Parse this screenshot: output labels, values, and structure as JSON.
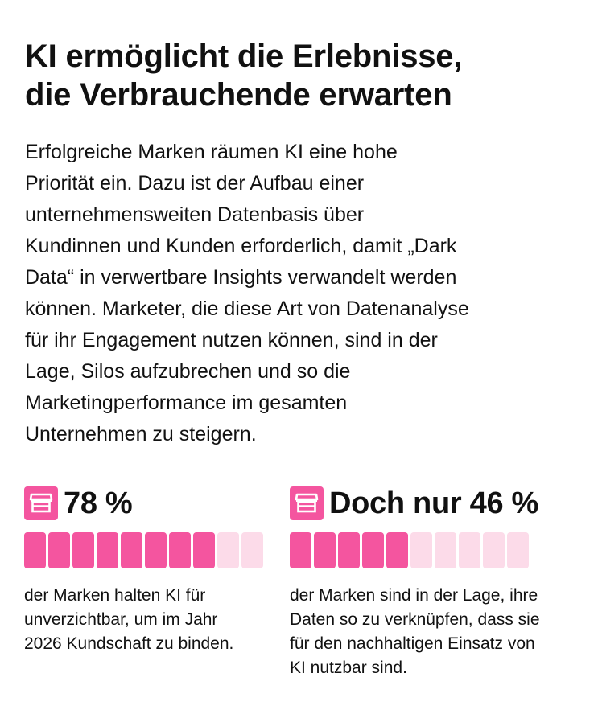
{
  "headline": {
    "lines": [
      "KI ermöglicht die Erlebnisse,",
      "die Verbrauchende erwarten"
    ]
  },
  "body": {
    "lines": [
      "Erfolgreiche Marken räumen KI eine hohe",
      "Priorität ein. Dazu ist der Aufbau einer",
      "unternehmensweiten Datenbasis über",
      "Kundinnen und Kunden erforderlich, damit „Dark",
      "Data“ in verwertbare Insights verwandelt werden",
      "können. Marketer, die diese Art von Datenanalyse",
      "für ihr Engagement nutzen können, sind in der",
      "Lage, Silos aufzubrechen und so die",
      "Marketingperformance im gesamten",
      "Unternehmen zu steigern."
    ]
  },
  "stats": [
    {
      "icon": "storefront-icon",
      "value": "78 %",
      "filled_segments": 8,
      "total_segments": 10,
      "caption_lines": [
        "der Marken halten KI für",
        "unverzichtbar, um im Jahr",
        "2026 Kundschaft zu binden."
      ]
    },
    {
      "icon": "storefront-icon",
      "value": "Doch nur 46 %",
      "filled_segments": 5,
      "total_segments": 10,
      "caption_lines": [
        "der Marken sind in der Lage, ihre",
        "Daten so zu verknüpfen, dass sie",
        "für den nachhaltigen Einsatz von",
        "KI nutzbar sind."
      ]
    }
  ],
  "colors": {
    "accent": "#f4559f",
    "accent_light": "#fcdbe9",
    "text": "#111111",
    "background": "#ffffff"
  }
}
